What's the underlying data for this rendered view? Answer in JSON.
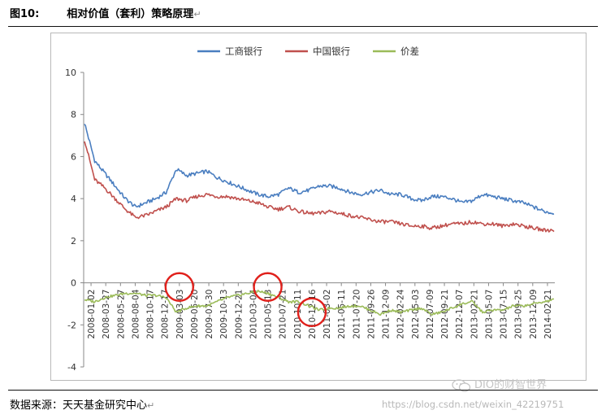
{
  "figure": {
    "label": "图10:",
    "title": "相对价值（套利）策略原理",
    "source": "数据来源：天天基金研究中心"
  },
  "watermark": {
    "account": "DIO的财智世界",
    "url": "https://blog.csdn.net/weixin_42219751"
  },
  "chart_data": {
    "type": "line",
    "ylim": [
      -4,
      10
    ],
    "yticks": [
      -4,
      -2,
      0,
      2,
      4,
      6,
      8,
      10
    ],
    "grid": false,
    "legend_position": "top-center",
    "xtick_labels": [
      "2008-01-02",
      "2008-03-27",
      "2008-05-27",
      "2008-08-04",
      "2008-10-17",
      "2008-12-17",
      "2009-03-03",
      "2009-05-20",
      "2009-07-30",
      "2009-10-13",
      "2009-12-21",
      "2010-03-04",
      "2010-05-13",
      "2010-07-21",
      "2010-10-11",
      "2010-12-16",
      "2011-03-02",
      "2011-05-11",
      "2011-07-20",
      "2011-09-26",
      "2011-12-09",
      "2012-02-24",
      "2012-05-03",
      "2012-07-09",
      "2012-09-21",
      "2012-12-07",
      "2013-02-21",
      "2013-05-07",
      "2013-07-15",
      "2013-09-25",
      "2013-12-09",
      "2014-02-21"
    ],
    "colors": {
      "icbc": "#4a7ec0",
      "boc": "#c0504d",
      "spread": "#9bbb59",
      "highlight": "#e0201b"
    },
    "series": [
      {
        "name": "工商银行",
        "key": "icbc",
        "values": [
          7.6,
          5.8,
          5.2,
          4.6,
          4.0,
          3.6,
          3.8,
          4.0,
          4.3,
          5.4,
          5.1,
          5.2,
          5.3,
          5.0,
          4.8,
          4.6,
          4.4,
          4.2,
          4.1,
          4.2,
          4.5,
          4.3,
          4.4,
          4.6,
          4.6,
          4.5,
          4.3,
          4.2,
          4.3,
          4.4,
          4.2,
          4.2,
          4.0,
          3.9,
          4.1,
          4.1,
          4.0,
          3.8,
          3.9,
          4.2,
          4.1,
          4.0,
          3.9,
          3.8,
          3.6,
          3.4,
          3.3
        ]
      },
      {
        "name": "中国银行",
        "key": "boc",
        "values": [
          6.8,
          4.9,
          4.5,
          4.0,
          3.5,
          3.1,
          3.2,
          3.4,
          3.6,
          4.0,
          3.9,
          4.1,
          4.2,
          4.1,
          4.1,
          4.0,
          3.9,
          3.8,
          3.6,
          3.5,
          3.6,
          3.4,
          3.3,
          3.3,
          3.4,
          3.3,
          3.2,
          3.1,
          3.0,
          2.9,
          2.9,
          2.8,
          2.7,
          2.7,
          2.6,
          2.7,
          2.8,
          2.8,
          2.9,
          2.8,
          2.8,
          2.7,
          2.8,
          2.7,
          2.6,
          2.5,
          2.5
        ]
      },
      {
        "name": "价差",
        "key": "spread",
        "values": [
          -0.8,
          -0.9,
          -0.7,
          -0.6,
          -0.5,
          -0.5,
          -0.6,
          -0.6,
          -0.7,
          -1.4,
          -1.2,
          -1.1,
          -1.1,
          -0.9,
          -0.7,
          -0.6,
          -0.5,
          -0.4,
          -0.5,
          -0.7,
          -0.9,
          -0.9,
          -1.1,
          -1.3,
          -1.2,
          -1.2,
          -1.1,
          -1.1,
          -1.3,
          -1.5,
          -1.3,
          -1.4,
          -1.3,
          -1.2,
          -1.5,
          -1.4,
          -1.2,
          -1.0,
          -0.9,
          -1.4,
          -1.3,
          -1.3,
          -1.1,
          -1.1,
          -1.0,
          -0.9,
          -0.8
        ]
      }
    ],
    "highlights": [
      {
        "at_xtick": "2009-03-03",
        "value": -0.2
      },
      {
        "at_xtick": "2010-05-13",
        "value": -0.2
      },
      {
        "at_xtick": "2010-12-16",
        "value": -1.4
      }
    ]
  }
}
